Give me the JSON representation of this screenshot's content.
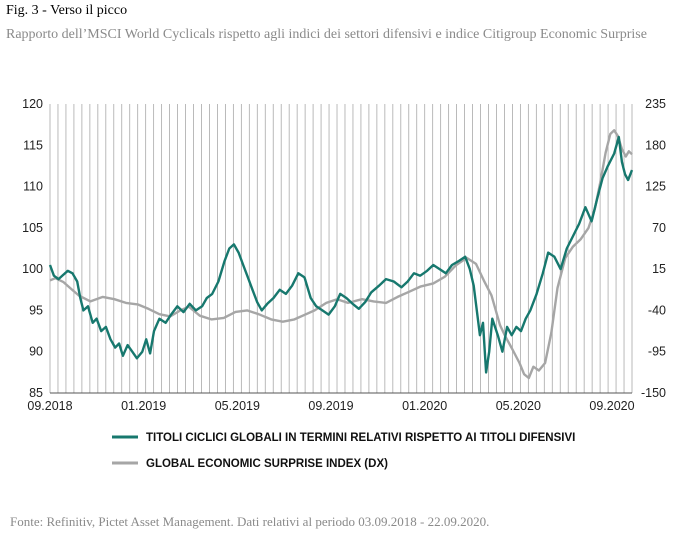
{
  "figure": {
    "title": "Fig. 3 - Verso il picco",
    "subtitle": "Rapporto dell’MSCI World Cyclicals rispetto agli indici dei settori difensivi e indice Citigroup Economic Surprise",
    "source": "Fonte: Refinitiv, Pictet Asset Management. Dati relativi al periodo 03.09.2018 - 22.09.2020."
  },
  "colors": {
    "teal": "#17786e",
    "gray": "#a6a6a6",
    "grid": "#a9a9a9",
    "axis": "#555555"
  },
  "chart_data": {
    "type": "line",
    "x_ticks": [
      "09.2018",
      "01.2019",
      "05.2019",
      "09.2019",
      "01.2020",
      "05.2020",
      "09.2020"
    ],
    "x_range": [
      "2018-09-03",
      "2020-09-22"
    ],
    "y_left": {
      "ticks": [
        "85",
        "90",
        "95",
        "100",
        "105",
        "110",
        "115",
        "120"
      ],
      "range": [
        85,
        120
      ]
    },
    "y_right": {
      "ticks": [
        "-150",
        "-95",
        "-40",
        "15",
        "70",
        "125",
        "180",
        "235"
      ],
      "range": [
        -150,
        235
      ]
    },
    "grid": "vertical",
    "legend": {
      "placement": "bottom"
    },
    "series": [
      {
        "name": "TITOLI CICLICI GLOBALI IN TERMINI RELATIVI RISPETTO AI TITOLI DIFENSIVI",
        "axis": "left",
        "color": "#17786e",
        "points": [
          [
            "2018-09-03",
            100.5
          ],
          [
            "2018-09-08",
            99.2
          ],
          [
            "2018-09-14",
            98.8
          ],
          [
            "2018-09-20",
            99.3
          ],
          [
            "2018-09-26",
            99.8
          ],
          [
            "2018-10-02",
            99.5
          ],
          [
            "2018-10-08",
            98.5
          ],
          [
            "2018-10-12",
            96.5
          ],
          [
            "2018-10-16",
            95.0
          ],
          [
            "2018-10-22",
            95.5
          ],
          [
            "2018-10-28",
            93.5
          ],
          [
            "2018-11-02",
            94.0
          ],
          [
            "2018-11-08",
            92.5
          ],
          [
            "2018-11-14",
            93.0
          ],
          [
            "2018-11-20",
            91.5
          ],
          [
            "2018-11-26",
            90.5
          ],
          [
            "2018-12-01",
            91.0
          ],
          [
            "2018-12-06",
            89.5
          ],
          [
            "2018-12-12",
            90.8
          ],
          [
            "2018-12-18",
            90.0
          ],
          [
            "2018-12-24",
            89.2
          ],
          [
            "2018-12-31",
            90.0
          ],
          [
            "2019-01-05",
            91.5
          ],
          [
            "2019-01-10",
            89.8
          ],
          [
            "2019-01-15",
            92.5
          ],
          [
            "2019-01-22",
            94.0
          ],
          [
            "2019-01-30",
            93.5
          ],
          [
            "2019-02-06",
            94.5
          ],
          [
            "2019-02-14",
            95.5
          ],
          [
            "2019-02-22",
            94.8
          ],
          [
            "2019-03-02",
            95.8
          ],
          [
            "2019-03-10",
            95.0
          ],
          [
            "2019-03-18",
            95.5
          ],
          [
            "2019-03-24",
            96.5
          ],
          [
            "2019-03-31",
            97.0
          ],
          [
            "2019-04-08",
            98.5
          ],
          [
            "2019-04-16",
            101.0
          ],
          [
            "2019-04-22",
            102.5
          ],
          [
            "2019-04-28",
            103.0
          ],
          [
            "2019-05-04",
            102.0
          ],
          [
            "2019-05-10",
            100.5
          ],
          [
            "2019-05-16",
            99.0
          ],
          [
            "2019-05-22",
            97.5
          ],
          [
            "2019-05-28",
            96.0
          ],
          [
            "2019-06-03",
            95.0
          ],
          [
            "2019-06-10",
            95.8
          ],
          [
            "2019-06-18",
            96.5
          ],
          [
            "2019-06-26",
            97.5
          ],
          [
            "2019-07-04",
            97.0
          ],
          [
            "2019-07-12",
            98.0
          ],
          [
            "2019-07-20",
            99.5
          ],
          [
            "2019-07-28",
            99.0
          ],
          [
            "2019-08-05",
            96.5
          ],
          [
            "2019-08-12",
            95.5
          ],
          [
            "2019-08-20",
            95.0
          ],
          [
            "2019-08-28",
            94.5
          ],
          [
            "2019-09-05",
            95.5
          ],
          [
            "2019-09-12",
            97.0
          ],
          [
            "2019-09-20",
            96.5
          ],
          [
            "2019-09-28",
            95.8
          ],
          [
            "2019-10-06",
            95.2
          ],
          [
            "2019-10-14",
            96.0
          ],
          [
            "2019-10-22",
            97.2
          ],
          [
            "2019-11-01",
            98.0
          ],
          [
            "2019-11-10",
            98.8
          ],
          [
            "2019-11-20",
            98.5
          ],
          [
            "2019-11-30",
            97.8
          ],
          [
            "2019-12-08",
            98.5
          ],
          [
            "2019-12-16",
            99.5
          ],
          [
            "2019-12-24",
            99.2
          ],
          [
            "2020-01-02",
            99.8
          ],
          [
            "2020-01-10",
            100.5
          ],
          [
            "2020-01-18",
            100.0
          ],
          [
            "2020-01-26",
            99.5
          ],
          [
            "2020-02-03",
            100.5
          ],
          [
            "2020-02-12",
            101.0
          ],
          [
            "2020-02-20",
            101.5
          ],
          [
            "2020-02-26",
            100.0
          ],
          [
            "2020-03-02",
            98.0
          ],
          [
            "2020-03-06",
            95.0
          ],
          [
            "2020-03-10",
            92.0
          ],
          [
            "2020-03-14",
            93.5
          ],
          [
            "2020-03-18",
            87.5
          ],
          [
            "2020-03-22",
            90.0
          ],
          [
            "2020-03-26",
            94.0
          ],
          [
            "2020-04-02",
            92.0
          ],
          [
            "2020-04-08",
            90.0
          ],
          [
            "2020-04-14",
            93.0
          ],
          [
            "2020-04-20",
            92.0
          ],
          [
            "2020-04-26",
            93.0
          ],
          [
            "2020-05-02",
            92.5
          ],
          [
            "2020-05-08",
            94.0
          ],
          [
            "2020-05-14",
            95.0
          ],
          [
            "2020-05-22",
            97.0
          ],
          [
            "2020-05-30",
            99.5
          ],
          [
            "2020-06-06",
            102.0
          ],
          [
            "2020-06-14",
            101.5
          ],
          [
            "2020-06-22",
            100.0
          ],
          [
            "2020-06-30",
            102.5
          ],
          [
            "2020-07-08",
            104.0
          ],
          [
            "2020-07-16",
            105.5
          ],
          [
            "2020-07-24",
            107.5
          ],
          [
            "2020-08-01",
            105.8
          ],
          [
            "2020-08-08",
            108.5
          ],
          [
            "2020-08-15",
            111.0
          ],
          [
            "2020-08-22",
            112.5
          ],
          [
            "2020-08-30",
            114.0
          ],
          [
            "2020-09-05",
            116.0
          ],
          [
            "2020-09-09",
            113.0
          ],
          [
            "2020-09-13",
            111.5
          ],
          [
            "2020-09-17",
            110.8
          ],
          [
            "2020-09-22",
            112.0
          ]
        ]
      },
      {
        "name": "GLOBAL ECONOMIC SURPRISE INDEX (DX)",
        "axis": "right",
        "color": "#a6a6a6",
        "points": [
          [
            "2018-09-03",
            0
          ],
          [
            "2018-09-10",
            3
          ],
          [
            "2018-09-20",
            -2
          ],
          [
            "2018-10-01",
            -12
          ],
          [
            "2018-10-10",
            -20
          ],
          [
            "2018-10-25",
            -28
          ],
          [
            "2018-11-10",
            -22
          ],
          [
            "2018-11-25",
            -25
          ],
          [
            "2018-12-10",
            -30
          ],
          [
            "2018-12-25",
            -32
          ],
          [
            "2019-01-08",
            -38
          ],
          [
            "2019-01-22",
            -45
          ],
          [
            "2019-02-05",
            -48
          ],
          [
            "2019-02-18",
            -40
          ],
          [
            "2019-03-01",
            -35
          ],
          [
            "2019-03-15",
            -47
          ],
          [
            "2019-03-30",
            -52
          ],
          [
            "2019-04-15",
            -50
          ],
          [
            "2019-04-30",
            -42
          ],
          [
            "2019-05-15",
            -40
          ],
          [
            "2019-05-30",
            -45
          ],
          [
            "2019-06-15",
            -52
          ],
          [
            "2019-06-30",
            -55
          ],
          [
            "2019-07-15",
            -52
          ],
          [
            "2019-07-30",
            -45
          ],
          [
            "2019-08-10",
            -40
          ],
          [
            "2019-08-25",
            -30
          ],
          [
            "2019-09-08",
            -25
          ],
          [
            "2019-09-22",
            -30
          ],
          [
            "2019-10-10",
            -25
          ],
          [
            "2019-10-25",
            -28
          ],
          [
            "2019-11-10",
            -30
          ],
          [
            "2019-11-25",
            -22
          ],
          [
            "2019-12-10",
            -15
          ],
          [
            "2019-12-25",
            -8
          ],
          [
            "2020-01-10",
            -4
          ],
          [
            "2020-01-25",
            5
          ],
          [
            "2020-02-08",
            20
          ],
          [
            "2020-02-22",
            30
          ],
          [
            "2020-03-05",
            22
          ],
          [
            "2020-03-15",
            0
          ],
          [
            "2020-03-25",
            -20
          ],
          [
            "2020-04-05",
            -60
          ],
          [
            "2020-04-12",
            -75
          ],
          [
            "2020-04-20",
            -90
          ],
          [
            "2020-04-30",
            -110
          ],
          [
            "2020-05-06",
            -125
          ],
          [
            "2020-05-12",
            -130
          ],
          [
            "2020-05-18",
            -115
          ],
          [
            "2020-05-25",
            -120
          ],
          [
            "2020-06-02",
            -110
          ],
          [
            "2020-06-10",
            -70
          ],
          [
            "2020-06-18",
            -10
          ],
          [
            "2020-06-28",
            30
          ],
          [
            "2020-07-08",
            45
          ],
          [
            "2020-07-18",
            55
          ],
          [
            "2020-07-28",
            70
          ],
          [
            "2020-08-05",
            95
          ],
          [
            "2020-08-12",
            130
          ],
          [
            "2020-08-19",
            170
          ],
          [
            "2020-08-25",
            195
          ],
          [
            "2020-08-30",
            200
          ],
          [
            "2020-09-04",
            192
          ],
          [
            "2020-09-09",
            175
          ],
          [
            "2020-09-14",
            165
          ],
          [
            "2020-09-18",
            172
          ],
          [
            "2020-09-22",
            168
          ]
        ]
      }
    ]
  }
}
